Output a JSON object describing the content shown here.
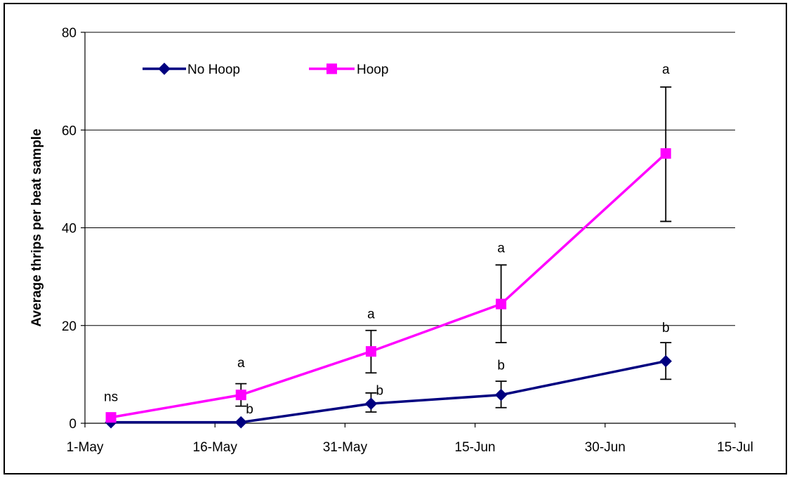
{
  "chart_data": {
    "type": "line",
    "title": "",
    "xlabel": "",
    "ylabel": "Average thrips per beat sample",
    "x_tick_labels": [
      "1-May",
      "16-May",
      "31-May",
      "15-Jun",
      "30-Jun",
      "15-Jul"
    ],
    "x_range": [
      "1-May",
      "15-Jul"
    ],
    "ylim": [
      0,
      80
    ],
    "y_ticks": [
      0,
      20,
      40,
      60,
      80
    ],
    "grid": "horizontal",
    "legend_position": "top-left",
    "series": [
      {
        "name": "No Hoop",
        "color": "#000080",
        "marker": "diamond",
        "x": [
          "4-May",
          "19-May",
          "3-Jun",
          "18-Jun",
          "7-Jul"
        ],
        "y": [
          0.2,
          0.2,
          4.0,
          5.8,
          12.7
        ],
        "error_low": [
          null,
          null,
          2.3,
          3.2,
          9.0
        ],
        "error_high": [
          null,
          null,
          6.2,
          8.6,
          16.5
        ]
      },
      {
        "name": "Hoop",
        "color": "#FF00FF",
        "marker": "square",
        "x": [
          "4-May",
          "19-May",
          "3-Jun",
          "18-Jun",
          "7-Jul"
        ],
        "y": [
          1.2,
          5.8,
          14.7,
          24.4,
          55.2
        ],
        "error_low": [
          null,
          3.5,
          10.3,
          16.5,
          41.3
        ],
        "error_high": [
          null,
          8.1,
          19.0,
          32.4,
          68.8
        ]
      }
    ],
    "annotations": [
      {
        "text": "ns",
        "x": "4-May",
        "y": 5.5
      },
      {
        "text": "a",
        "x": "19-May",
        "y": 12.5
      },
      {
        "text": "b",
        "x": "20-May",
        "y": 3.0
      },
      {
        "text": "a",
        "x": "3-Jun",
        "y": 22.5
      },
      {
        "text": "b",
        "x": "4-Jun",
        "y": 6.8
      },
      {
        "text": "a",
        "x": "18-Jun",
        "y": 36.0
      },
      {
        "text": "b",
        "x": "18-Jun",
        "y": 12.0
      },
      {
        "text": "a",
        "x": "7-Jul",
        "y": 72.5
      },
      {
        "text": "b",
        "x": "7-Jul",
        "y": 19.7
      }
    ]
  }
}
